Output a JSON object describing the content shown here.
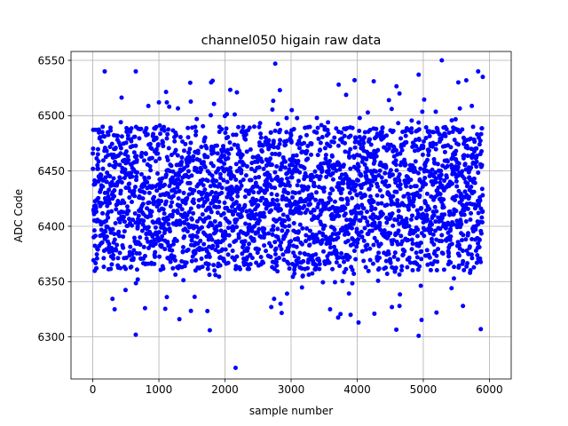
{
  "chart_data": {
    "type": "scatter",
    "title": "channel050 higain raw data",
    "xlabel": "sample number",
    "ylabel": "ADC Code",
    "xlim": [
      -330,
      6330
    ],
    "ylim": [
      6262,
      6558
    ],
    "xticks": [
      0,
      1000,
      2000,
      3000,
      4000,
      5000,
      6000
    ],
    "yticks": [
      6300,
      6350,
      6400,
      6450,
      6500,
      6550
    ],
    "grid": true,
    "marker_color": "#0000ff",
    "series": [
      {
        "color": "#0000ff",
        "n_points": 5900,
        "x_range": [
          0,
          5900
        ],
        "central_band": [
          6360,
          6490
        ],
        "points": [
          [
            2160,
            6272
          ],
          [
            650,
            6302
          ],
          [
            4930,
            6301
          ],
          [
            1310,
            6316
          ],
          [
            4020,
            6313
          ],
          [
            1770,
            6306
          ],
          [
            5870,
            6307
          ],
          [
            330,
            6325
          ],
          [
            790,
            6326
          ],
          [
            3590,
            6325
          ],
          [
            2700,
            6327
          ],
          [
            1120,
            6336
          ],
          [
            4640,
            6328
          ],
          [
            5600,
            6328
          ],
          [
            2840,
            6330
          ],
          [
            3900,
            6320
          ],
          [
            5200,
            6322
          ],
          [
            4260,
            6321
          ],
          [
            180,
            6540
          ],
          [
            650,
            6540
          ],
          [
            2760,
            6547
          ],
          [
            5280,
            6550
          ],
          [
            5830,
            6540
          ],
          [
            4930,
            6537
          ],
          [
            2180,
            6521
          ],
          [
            2830,
            6523
          ],
          [
            3720,
            6528
          ],
          [
            3960,
            6532
          ],
          [
            4250,
            6531
          ],
          [
            5530,
            6530
          ],
          [
            5900,
            6535
          ],
          [
            1790,
            6530
          ],
          [
            1000,
            6512
          ],
          [
            1120,
            6512
          ],
          [
            3010,
            6505
          ],
          [
            4640,
            6520
          ],
          [
            4480,
            6514
          ]
        ]
      }
    ]
  }
}
